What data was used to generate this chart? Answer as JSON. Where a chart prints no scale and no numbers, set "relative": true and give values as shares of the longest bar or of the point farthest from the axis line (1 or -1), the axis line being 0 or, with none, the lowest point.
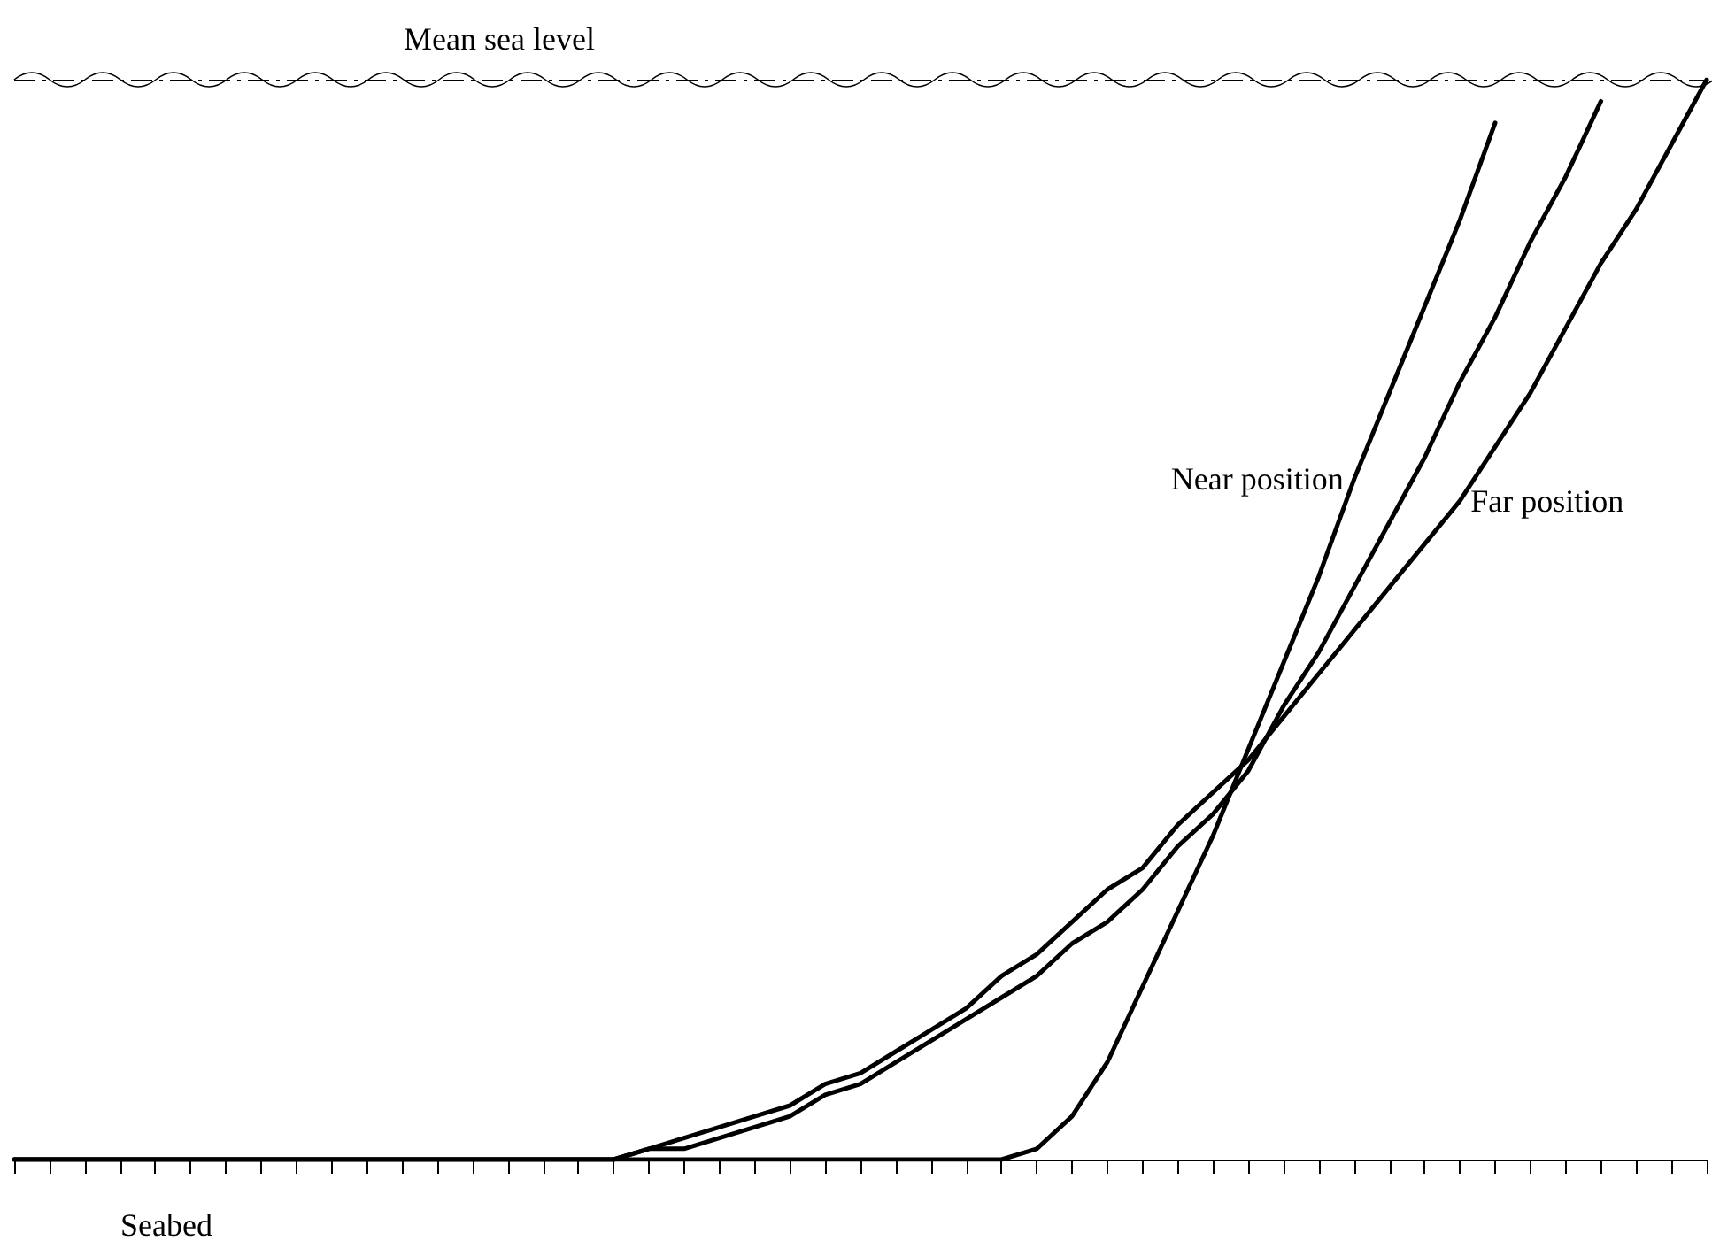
{
  "chart_data": {
    "type": "line",
    "relative": true,
    "xlabel": "Seabed",
    "categories": [
      null,
      null,
      null,
      null,
      null,
      null,
      null,
      null,
      null,
      null,
      null,
      null,
      null,
      null,
      null,
      null,
      null,
      null,
      null,
      null,
      null,
      null,
      null,
      null,
      null,
      null,
      null,
      null,
      null,
      null,
      null,
      null,
      null,
      null,
      null,
      null,
      null,
      null,
      null,
      null,
      null,
      null,
      null,
      null,
      null,
      null,
      null,
      null,
      null
    ],
    "series": [
      {
        "name": "Near position",
        "color": "#000000",
        "values": [
          0,
          0,
          0,
          0,
          0,
          0,
          0,
          0,
          0,
          0,
          0,
          0,
          0,
          0,
          0,
          0,
          0,
          0,
          0,
          0,
          0,
          0,
          0,
          0,
          0,
          0,
          0,
          0,
          0.0,
          0.01,
          0.04,
          0.09,
          0.16,
          0.23,
          0.3,
          0.38,
          0.46,
          0.54,
          0.63,
          0.71,
          0.79,
          0.87,
          0.96,
          null,
          null,
          null,
          null,
          null,
          null
        ]
      },
      {
        "color": "#000000",
        "values": [
          0,
          0,
          0,
          0,
          0,
          0,
          0,
          0,
          0,
          0,
          0,
          0,
          0,
          0,
          0,
          0,
          0,
          0.0,
          0.01,
          0.01,
          0.02,
          0.03,
          0.04,
          0.06,
          0.07,
          0.09,
          0.11,
          0.13,
          0.15,
          0.17,
          0.2,
          0.22,
          0.25,
          0.29,
          0.32,
          0.36,
          0.42,
          0.47,
          0.53,
          0.59,
          0.65,
          0.72,
          0.78,
          0.85,
          0.91,
          0.98,
          null,
          null,
          null
        ]
      },
      {
        "name": "Far position",
        "color": "#000000",
        "values": [
          0,
          0,
          0,
          0,
          0,
          0,
          0,
          0,
          0,
          0,
          0,
          0,
          0,
          0,
          0,
          0,
          0,
          0.0,
          0.01,
          0.02,
          0.03,
          0.04,
          0.05,
          0.07,
          0.08,
          0.1,
          0.12,
          0.14,
          0.17,
          0.19,
          0.22,
          0.25,
          0.27,
          0.31,
          0.34,
          0.37,
          0.41,
          0.45,
          0.49,
          0.53,
          0.57,
          0.61,
          0.66,
          0.71,
          0.77,
          0.83,
          0.88,
          0.94,
          1.0
        ]
      }
    ],
    "ref_lines": [
      {
        "axis": "y",
        "value": 1.0,
        "label": "Mean sea level",
        "color": "#000000",
        "line_style": "dashed"
      }
    ],
    "grid": false,
    "legend": false,
    "marker": "none",
    "line_style": "solid"
  }
}
